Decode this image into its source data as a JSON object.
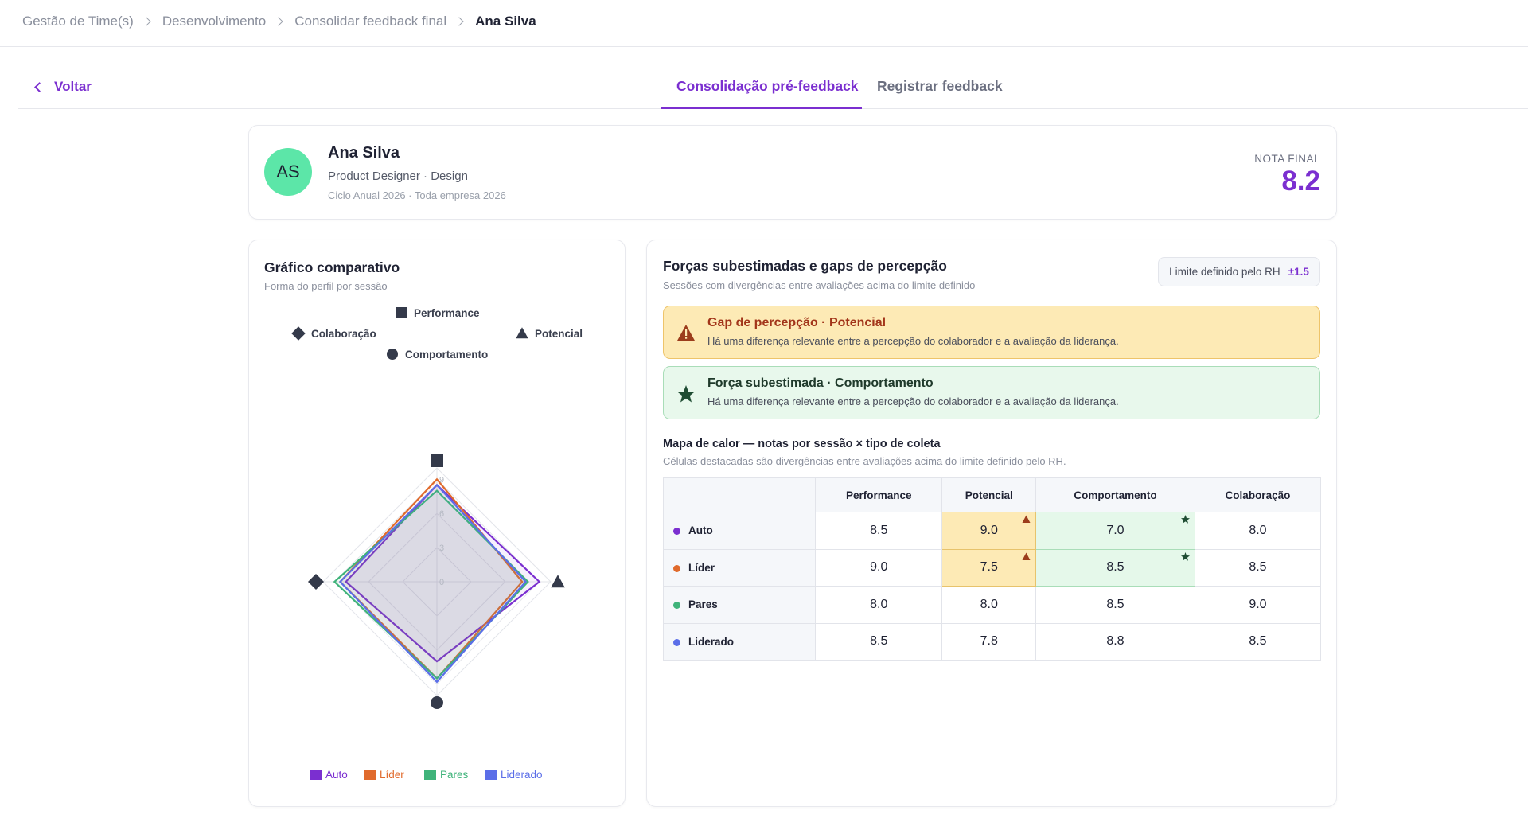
{
  "breadcrumb": [
    "Gestão de Time(s)",
    "Desenvolvimento",
    "Consolidar feedback final",
    "Ana Silva"
  ],
  "back": "Voltar",
  "tabs": [
    "Consolidação pré-feedback",
    "Registrar feedback"
  ],
  "profile": {
    "initials": "AS",
    "name": "Ana Silva",
    "role": "Product Designer · Design",
    "cycle": "Ciclo Anual 2026 · Toda empresa 2026",
    "final_label": "NOTA FINAL",
    "final_score": "8.2"
  },
  "insights": {
    "title": "Forças subestimadas e gaps de percepção",
    "subtitle": "Sessões com divergências entre avaliações acima do limite definido",
    "limit_label": "Limite definido pelo RH",
    "limit_value": "±1.5",
    "alerts": [
      {
        "kind": "gap",
        "title": "Gap de percepção · Potencial",
        "text": "Há uma diferença relevante entre a percepção do colaborador e a avaliação da liderança."
      },
      {
        "kind": "strength",
        "title": "Força subestimada · Comportamento",
        "text": "Há uma diferença relevante entre a percepção do colaborador e a avaliação da liderança."
      }
    ],
    "heatmap_title": "Mapa de calor — notas por sessão × tipo de coleta",
    "heatmap_subtitle": "Células destacadas são divergências entre avaliações acima do limite definido pelo RH."
  },
  "chart_data": {
    "type": "radar",
    "title": "Gráfico comparativo",
    "subtitle": "Forma do perfil por sessão",
    "categories": [
      "Performance",
      "Potencial",
      "Comportamento",
      "Colaboração"
    ],
    "rlim": [
      0,
      10
    ],
    "rticks": [
      0,
      3,
      6,
      9
    ],
    "series": [
      {
        "name": "Auto",
        "color": "#7b2fd0",
        "values": [
          8.5,
          9,
          7,
          8
        ],
        "value_labels": [
          "8.5",
          "9.0",
          "7.0",
          "8.0"
        ],
        "cell_flags": [
          null,
          "gap",
          "strength",
          null
        ]
      },
      {
        "name": "Líder",
        "color": "#e06a2c",
        "values": [
          9,
          7.5,
          8.5,
          8.5
        ],
        "value_labels": [
          "9.0",
          "7.5",
          "8.5",
          "8.5"
        ],
        "cell_flags": [
          null,
          "gap",
          "strength",
          null
        ]
      },
      {
        "name": "Pares",
        "color": "#3fb37a",
        "values": [
          8,
          8,
          8.5,
          9
        ],
        "value_labels": [
          "8.0",
          "8.0",
          "8.5",
          "9.0"
        ],
        "cell_flags": [
          null,
          null,
          null,
          null
        ]
      },
      {
        "name": "Liderado",
        "color": "#5b6ee8",
        "values": [
          8.5,
          7.8,
          8.8,
          8.5
        ],
        "value_labels": [
          "8.5",
          "7.8",
          "8.8",
          "8.5"
        ],
        "cell_flags": [
          null,
          null,
          null,
          null
        ]
      }
    ]
  }
}
